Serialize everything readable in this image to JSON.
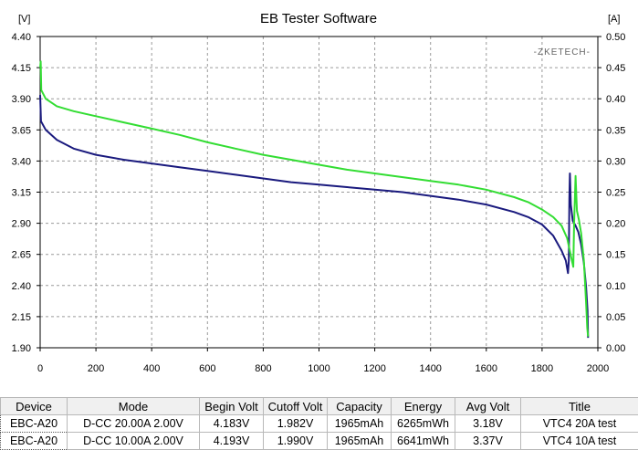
{
  "window": {
    "title": "EB Tester Software",
    "brand": "-ZKETECH-"
  },
  "chart_data": {
    "type": "line",
    "title": "EB Tester Software",
    "xlabel": "",
    "ylabel_left": "[V]",
    "ylabel_right": "[A]",
    "xlim": [
      0,
      2000
    ],
    "ylim_left": [
      1.9,
      4.4
    ],
    "ylim_right": [
      0.0,
      0.5
    ],
    "x_ticks": [
      "0",
      "200",
      "400",
      "600",
      "800",
      "1000",
      "1200",
      "1400",
      "1600",
      "1800",
      "2000"
    ],
    "y_left_ticks": [
      "4.40",
      "4.15",
      "3.90",
      "3.65",
      "3.40",
      "3.15",
      "2.90",
      "2.65",
      "2.40",
      "2.15",
      "1.90"
    ],
    "y_right_ticks": [
      "0.50",
      "0.45",
      "0.40",
      "0.35",
      "0.30",
      "0.25",
      "0.20",
      "0.15",
      "0.10",
      "0.05",
      "0.00"
    ],
    "grid": true,
    "series": [
      {
        "color": "#1a1a7e",
        "points": [
          [
            0,
            3.93
          ],
          [
            3,
            3.72
          ],
          [
            20,
            3.65
          ],
          [
            60,
            3.57
          ],
          [
            120,
            3.5
          ],
          [
            200,
            3.45
          ],
          [
            300,
            3.41
          ],
          [
            400,
            3.38
          ],
          [
            500,
            3.35
          ],
          [
            600,
            3.32
          ],
          [
            700,
            3.29
          ],
          [
            800,
            3.26
          ],
          [
            900,
            3.23
          ],
          [
            1000,
            3.21
          ],
          [
            1100,
            3.19
          ],
          [
            1200,
            3.17
          ],
          [
            1300,
            3.15
          ],
          [
            1400,
            3.12
          ],
          [
            1500,
            3.09
          ],
          [
            1600,
            3.05
          ],
          [
            1700,
            2.99
          ],
          [
            1750,
            2.95
          ],
          [
            1800,
            2.89
          ],
          [
            1840,
            2.8
          ],
          [
            1870,
            2.68
          ],
          [
            1885,
            2.6
          ],
          [
            1893,
            2.5
          ],
          [
            1896,
            2.6
          ],
          [
            1898,
            3.1
          ],
          [
            1900,
            3.3
          ],
          [
            1903,
            3.05
          ],
          [
            1910,
            2.92
          ],
          [
            1920,
            2.88
          ],
          [
            1930,
            2.83
          ],
          [
            1940,
            2.73
          ],
          [
            1950,
            2.58
          ],
          [
            1958,
            2.38
          ],
          [
            1963,
            2.2
          ],
          [
            1965,
            1.98
          ]
        ]
      },
      {
        "color": "#33dd33",
        "points": [
          [
            0,
            4.15
          ],
          [
            2,
            4.2
          ],
          [
            4,
            3.97
          ],
          [
            20,
            3.9
          ],
          [
            60,
            3.84
          ],
          [
            120,
            3.8
          ],
          [
            200,
            3.76
          ],
          [
            300,
            3.71
          ],
          [
            400,
            3.66
          ],
          [
            500,
            3.61
          ],
          [
            600,
            3.55
          ],
          [
            700,
            3.5
          ],
          [
            800,
            3.45
          ],
          [
            900,
            3.41
          ],
          [
            1000,
            3.37
          ],
          [
            1100,
            3.33
          ],
          [
            1200,
            3.3
          ],
          [
            1300,
            3.27
          ],
          [
            1400,
            3.24
          ],
          [
            1500,
            3.21
          ],
          [
            1600,
            3.17
          ],
          [
            1700,
            3.11
          ],
          [
            1750,
            3.07
          ],
          [
            1800,
            3.01
          ],
          [
            1840,
            2.95
          ],
          [
            1870,
            2.88
          ],
          [
            1890,
            2.78
          ],
          [
            1905,
            2.62
          ],
          [
            1912,
            2.55
          ],
          [
            1915,
            2.9
          ],
          [
            1920,
            3.28
          ],
          [
            1925,
            3.0
          ],
          [
            1932,
            2.93
          ],
          [
            1940,
            2.82
          ],
          [
            1950,
            2.6
          ],
          [
            1958,
            2.25
          ],
          [
            1962,
            2.06
          ],
          [
            1965,
            1.99
          ]
        ]
      }
    ]
  },
  "results_table": {
    "headers": [
      "Device",
      "Mode",
      "Begin Volt",
      "Cutoff Volt",
      "Capacity",
      "Energy",
      "Avg Volt",
      "Title"
    ],
    "rows": [
      [
        "EBC-A20",
        "D-CC  20.00A  2.00V",
        "4.183V",
        "1.982V",
        "1965mAh",
        "6265mWh",
        "3.18V",
        "VTC4 20A test"
      ],
      [
        "EBC-A20",
        "D-CC  10.00A  2.00V",
        "4.193V",
        "1.990V",
        "1965mAh",
        "6641mWh",
        "3.37V",
        "VTC4 10A test"
      ]
    ]
  }
}
